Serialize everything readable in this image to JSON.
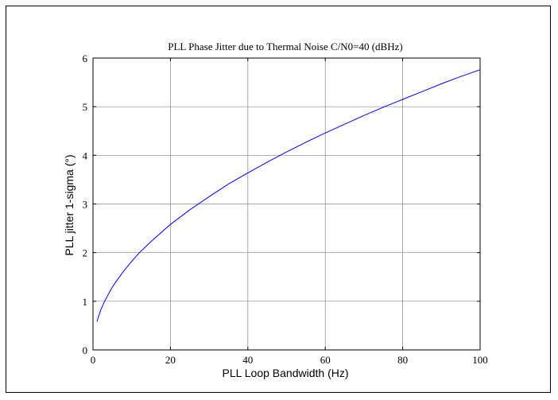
{
  "chart_data": {
    "type": "line",
    "title": "PLL Phase Jitter due to Thermal Noise C/N0=40 (dBHz)",
    "xlabel": "PLL Loop Bandwidth (Hz)",
    "ylabel": "PLL jitter 1-sigma (°)",
    "xlim": [
      0,
      100
    ],
    "ylim": [
      0,
      6
    ],
    "xticks": [
      0,
      20,
      40,
      60,
      80,
      100
    ],
    "xtick_labels": [
      "0",
      "20",
      "40",
      "60",
      "80",
      "100"
    ],
    "yticks": [
      0,
      1,
      2,
      3,
      4,
      5,
      6
    ],
    "ytick_labels": [
      "0",
      "1",
      "2",
      "3",
      "4",
      "5",
      "6"
    ],
    "grid": true,
    "line_color": "#0000ff",
    "series": [
      {
        "x": [
          1,
          2,
          3,
          4,
          5,
          6,
          8,
          10,
          12,
          15,
          20,
          25,
          30,
          35,
          40,
          45,
          50,
          55,
          60,
          65,
          70,
          75,
          80,
          85,
          90,
          95,
          100
        ],
        "values": [
          0.58,
          0.82,
          1.0,
          1.15,
          1.29,
          1.41,
          1.63,
          1.82,
          2.0,
          2.23,
          2.58,
          2.88,
          3.15,
          3.41,
          3.64,
          3.86,
          4.07,
          4.27,
          4.46,
          4.64,
          4.82,
          4.99,
          5.15,
          5.31,
          5.47,
          5.62,
          5.76
        ]
      }
    ]
  }
}
